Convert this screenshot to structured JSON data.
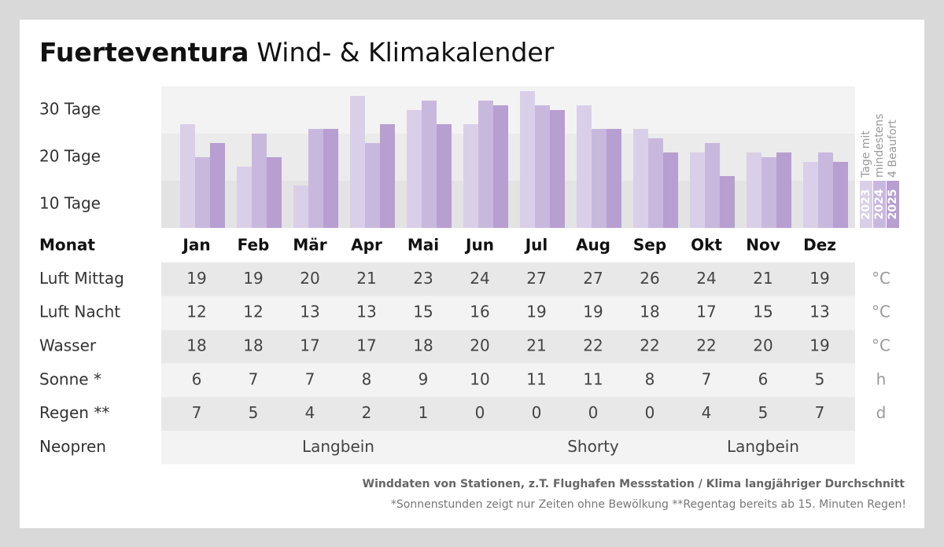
{
  "chart_data": {
    "type": "bar",
    "title": "Fuerteventura",
    "subtitle": "Wind- & Klimakalender",
    "categories": [
      "Jan",
      "Feb",
      "Mär",
      "Apr",
      "Mai",
      "Jun",
      "Jul",
      "Aug",
      "Sep",
      "Okt",
      "Nov",
      "Dez"
    ],
    "series": [
      {
        "name": "2023",
        "color": "#dacfe8",
        "values": [
          22,
          13,
          9,
          28,
          25,
          22,
          29,
          26,
          21,
          16,
          16,
          14
        ]
      },
      {
        "name": "2024",
        "color": "#c9b8de",
        "values": [
          15,
          20,
          21,
          18,
          27,
          27,
          26,
          21,
          19,
          18,
          15,
          16
        ]
      },
      {
        "name": "2025",
        "color": "#b79fd1",
        "values": [
          18,
          15,
          21,
          22,
          22,
          26,
          25,
          21,
          16,
          11,
          16,
          14
        ]
      }
    ],
    "ylim": [
      0,
      30
    ],
    "yticks": [
      {
        "value": 30,
        "label": "30 Tage"
      },
      {
        "value": 20,
        "label": "20 Tage"
      },
      {
        "value": 10,
        "label": "10 Tage"
      }
    ],
    "legend_title": [
      "Tage mit",
      "mindestens",
      "4 Beaufort"
    ],
    "grid": true
  },
  "table": {
    "header": "Monat",
    "rows": [
      {
        "label": "Luft Mittag",
        "unit": "°C",
        "values": [
          19,
          19,
          20,
          21,
          23,
          24,
          27,
          27,
          26,
          24,
          21,
          19
        ]
      },
      {
        "label": "Luft Nacht",
        "unit": "°C",
        "values": [
          12,
          12,
          13,
          13,
          15,
          16,
          19,
          19,
          18,
          17,
          15,
          13
        ]
      },
      {
        "label": "Wasser",
        "unit": "°C",
        "values": [
          18,
          18,
          17,
          17,
          18,
          20,
          21,
          22,
          22,
          22,
          20,
          19
        ]
      },
      {
        "label": "Sonne *",
        "unit": "h",
        "values": [
          6,
          7,
          7,
          8,
          9,
          10,
          11,
          11,
          8,
          7,
          6,
          5
        ]
      },
      {
        "label": "Regen **",
        "unit": "d",
        "values": [
          7,
          5,
          4,
          2,
          1,
          0,
          0,
          0,
          0,
          4,
          5,
          7
        ]
      }
    ],
    "neopren": {
      "label": "Neopren",
      "segments": [
        "Langbein",
        "Shorty",
        "Langbein"
      ]
    }
  },
  "footer": {
    "source": "Winddaten von Stationen, z.T. Flughafen Messstation / Klima langjähriger Durchschnitt",
    "note": "*Sonnenstunden zeigt nur Zeiten ohne Bewölkung  **Regentag bereits ab 15. Minuten Regen!"
  }
}
